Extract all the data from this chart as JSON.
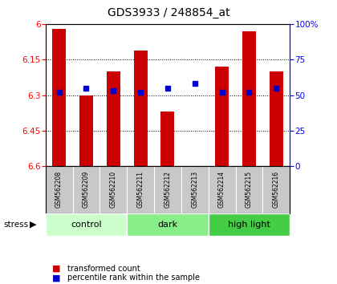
{
  "title": "GDS3933 / 248854_at",
  "samples": [
    "GSM562208",
    "GSM562209",
    "GSM562210",
    "GSM562211",
    "GSM562212",
    "GSM562213",
    "GSM562214",
    "GSM562215",
    "GSM562216"
  ],
  "red_values": [
    6.02,
    6.3,
    6.2,
    6.11,
    6.37,
    6.6,
    6.18,
    6.03,
    6.2
  ],
  "blue_values": [
    52,
    55,
    53,
    52,
    55,
    58,
    52,
    52,
    55
  ],
  "ylim_left": [
    6.0,
    6.6
  ],
  "yticks_left": [
    6.0,
    6.15,
    6.3,
    6.45,
    6.6
  ],
  "yticks_right": [
    0,
    25,
    50,
    75,
    100
  ],
  "groups": [
    {
      "label": "control",
      "start": 0,
      "end": 3,
      "color": "#ccffcc"
    },
    {
      "label": "dark",
      "start": 3,
      "end": 6,
      "color": "#88ee88"
    },
    {
      "label": "high light",
      "start": 6,
      "end": 9,
      "color": "#44cc44"
    }
  ],
  "stress_label": "stress",
  "legend_red": "transformed count",
  "legend_blue": "percentile rank within the sample",
  "bar_color": "#cc0000",
  "dot_color": "#0000cc",
  "background_color": "#ffffff",
  "plot_bg": "#ffffff"
}
